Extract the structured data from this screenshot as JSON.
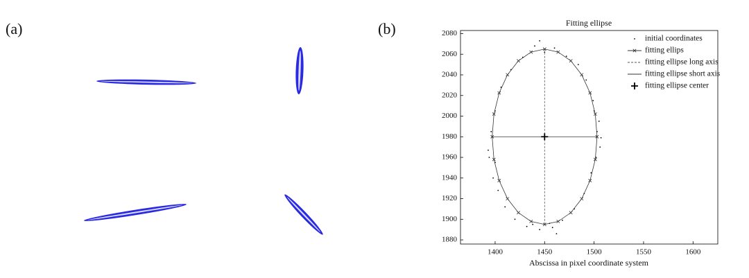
{
  "panels": {
    "a_label": "(a)",
    "b_label": "(b)"
  },
  "chart_data": {
    "type": "scatter",
    "title": "Fitting ellipse",
    "x_label": "Abscissa in pixel coordinate system",
    "xlim": [
      1365,
      1625
    ],
    "xticks": [
      1400,
      1450,
      1500,
      1550,
      1600
    ],
    "ylim": [
      1876,
      2083
    ],
    "yticks": [
      1880,
      1900,
      1920,
      1940,
      1960,
      1980,
      2000,
      2020,
      2040,
      2060,
      2080
    ],
    "legend": "upper right",
    "series": [
      {
        "name": "initial coordinates",
        "color": "#000000",
        "marker": "dot",
        "line": "none",
        "x": [
          1503,
          1506,
          1499,
          1492,
          1484,
          1472,
          1460,
          1450,
          1440,
          1428,
          1416,
          1406,
          1400,
          1396,
          1394,
          1398,
          1403,
          1410,
          1420,
          1432,
          1445,
          1455,
          1468,
          1480,
          1490,
          1497,
          1502,
          1505,
          1445,
          1462,
          1393,
          1507,
          1458,
          1438,
          1500,
          1400
        ],
        "values": [
          1985,
          1970,
          2015,
          2035,
          2050,
          2058,
          2066,
          2062,
          2068,
          2057,
          2045,
          2028,
          2005,
          1985,
          1960,
          1940,
          1928,
          1912,
          1900,
          1893,
          1890,
          1896,
          1899,
          1910,
          1925,
          1945,
          1960,
          1995,
          2073,
          1886,
          1967,
          1979,
          1892,
          1895,
          2005,
          1955
        ]
      },
      {
        "name": "fitting ellips",
        "color": "#333333",
        "marker": "x",
        "line": "closed",
        "x": [
          1503,
          1501.2,
          1495.9,
          1487.5,
          1476.5,
          1463.7,
          1450,
          1436.3,
          1423.5,
          1412.5,
          1404.1,
          1398.8,
          1397,
          1398.8,
          1404.1,
          1412.5,
          1423.5,
          1436.3,
          1450,
          1463.7,
          1476.5,
          1487.5,
          1495.9,
          1501.2
        ],
        "values": [
          1980,
          2002,
          2022.5,
          2040.1,
          2053.6,
          2062.1,
          2065,
          2062.1,
          2053.6,
          2040.1,
          2022.5,
          2002,
          1980,
          1958,
          1937.5,
          1919.9,
          1906.4,
          1897.9,
          1895,
          1897.9,
          1906.4,
          1919.9,
          1937.5,
          1958
        ]
      },
      {
        "name": "fitting ellipse long axis",
        "color": "#555555",
        "marker": "none",
        "line": "dashed",
        "x": [
          1450,
          1450
        ],
        "values": [
          1895,
          2065
        ]
      },
      {
        "name": "fitting ellipse short axis",
        "color": "#333333",
        "marker": "none",
        "line": "solid",
        "x": [
          1397,
          1503
        ],
        "values": [
          1980,
          1980
        ]
      },
      {
        "name": "fitting ellipse center",
        "color": "#000000",
        "marker": "plus",
        "line": "none",
        "x": [
          1450
        ],
        "values": [
          1980
        ]
      }
    ]
  }
}
